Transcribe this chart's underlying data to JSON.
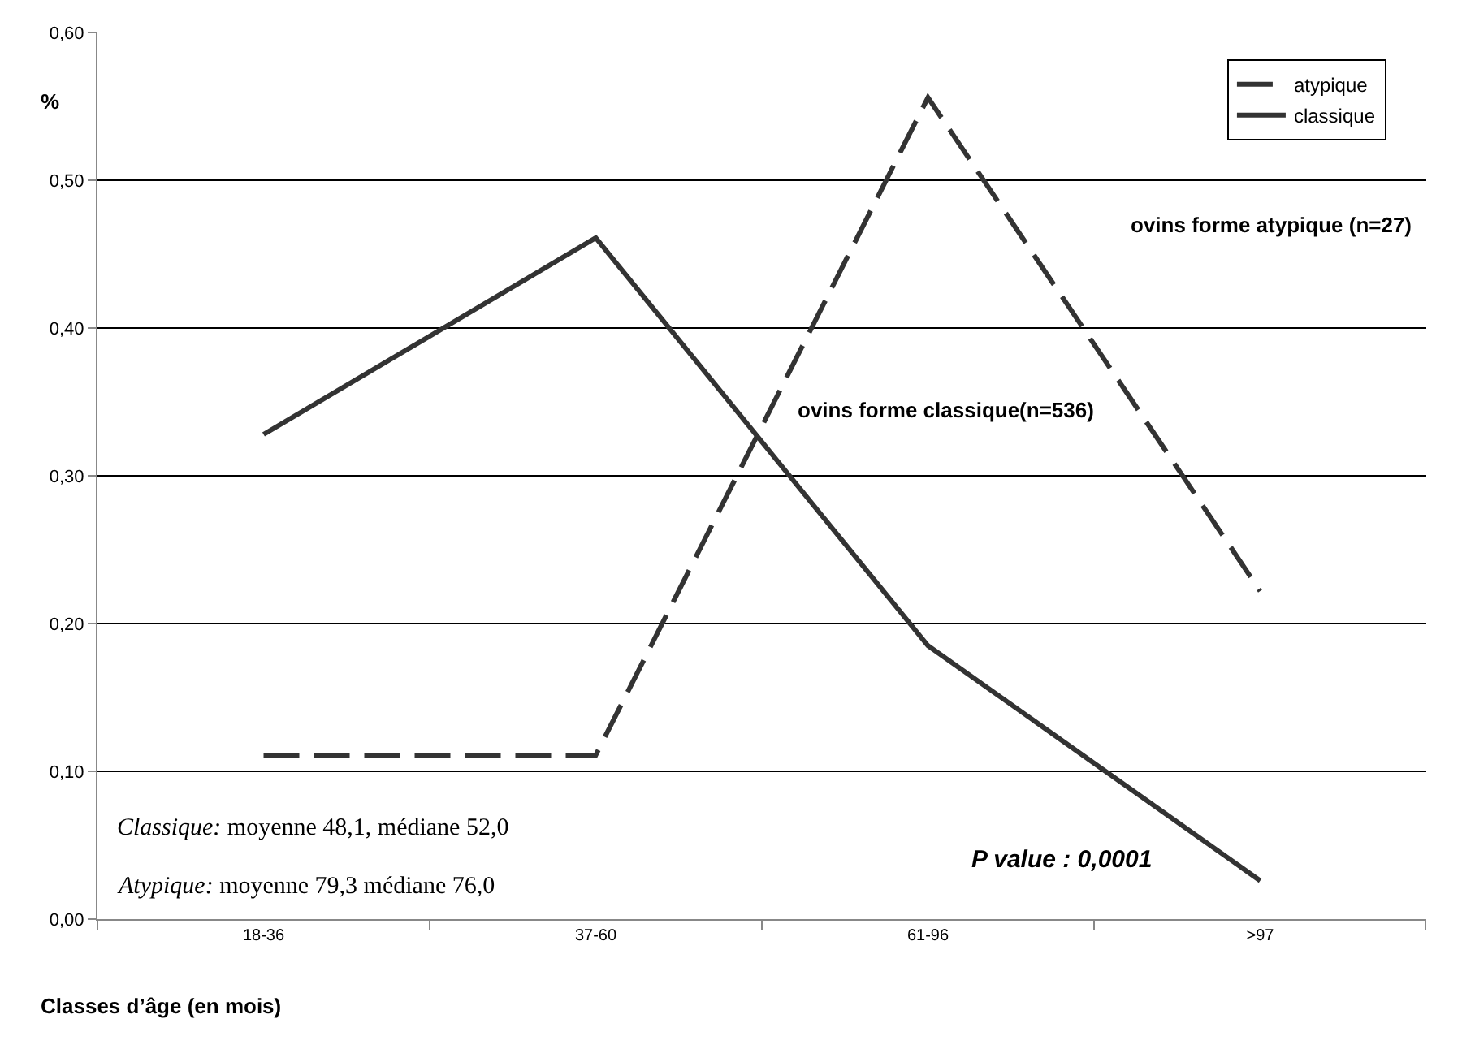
{
  "chart_data": {
    "type": "line",
    "xlabel": "Classes d’âge (en mois)",
    "ylabel": "%",
    "categories": [
      "18-36",
      "37-60",
      "61-96",
      ">97"
    ],
    "series": [
      {
        "name": "atypique",
        "color": "#333333",
        "line_style": "dashed",
        "values": [
          0.111,
          0.111,
          0.556,
          0.222
        ]
      },
      {
        "name": "classique",
        "color": "#333333",
        "line_style": "solid",
        "values": [
          0.328,
          0.461,
          0.185,
          0.026
        ]
      }
    ],
    "ylim": [
      0,
      0.6
    ],
    "yticks": [
      {
        "value": 0,
        "label": "0,00"
      },
      {
        "value": 0.1,
        "label": "0,10"
      },
      {
        "value": 0.2,
        "label": "0,20"
      },
      {
        "value": 0.3,
        "label": "0,30"
      },
      {
        "value": 0.4,
        "label": "0,40"
      },
      {
        "value": 0.5,
        "label": "0,50"
      },
      {
        "value": 0.6,
        "label": "0,60"
      }
    ],
    "grid": "y",
    "legend": "top right",
    "marker": "none",
    "annotations": [
      "ovins forme atypique (n=27)",
      "ovins forme classique(n=536)",
      "Classique: moyenne 48,1, médiane 52,0",
      "Atypique: moyenne 79,3 médiane 76,0",
      "P value : 0,0001"
    ]
  }
}
